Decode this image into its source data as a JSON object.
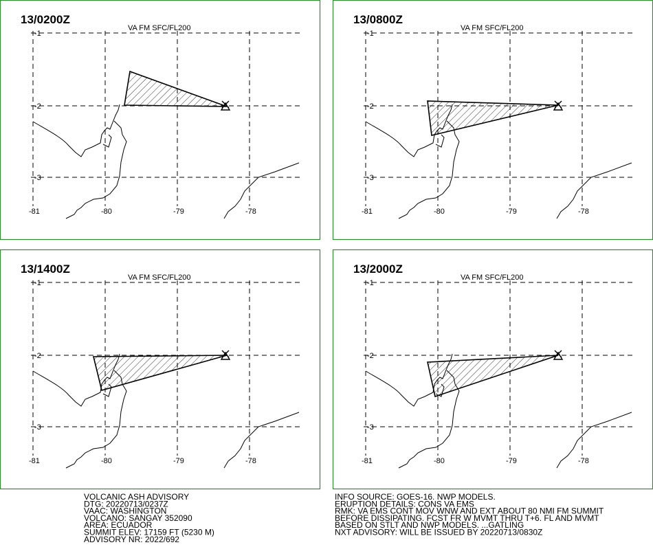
{
  "panels": [
    {
      "time": "13/0200Z",
      "level": "VA FM SFC/FL200"
    },
    {
      "time": "13/0800Z",
      "level": "VA FM SFC/FL200"
    },
    {
      "time": "13/1400Z",
      "level": "VA FM SFC/FL200"
    },
    {
      "time": "13/2000Z",
      "level": "VA FM SFC/FL200"
    }
  ],
  "lat_labels": [
    "-1",
    "-2",
    "-3"
  ],
  "lon_labels": [
    "-81",
    "-80",
    "-79",
    "-78"
  ],
  "advisory_left": [
    "VOLCANIC ASH ADVISORY",
    "DTG: 20220713/0237Z",
    "VAAC: WASHINGTON",
    "VOLCANO: SANGAY 352090",
    "AREA: ECUADOR",
    "SUMMIT ELEV: 17159 FT (5230 M)",
    "ADVISORY NR: 2022/692"
  ],
  "advisory_right": [
    "INFO SOURCE: GOES-16. NWP MODELS.",
    "ERUPTION DETAILS: CONS VA EMS",
    "RMK: VA EMS CONT MOV WNW AND EXT ABOUT 80 NMI FM SUMMIT",
    "BEFORE DISSIPATING. FCST FR W MVMT THRU T+6. FL AND MVMT",
    "BASED ON STLT AND NWP MODELS. ...GATLING",
    "NXT ADVISORY: WILL BE ISSUED BY 20220713/0830Z"
  ]
}
